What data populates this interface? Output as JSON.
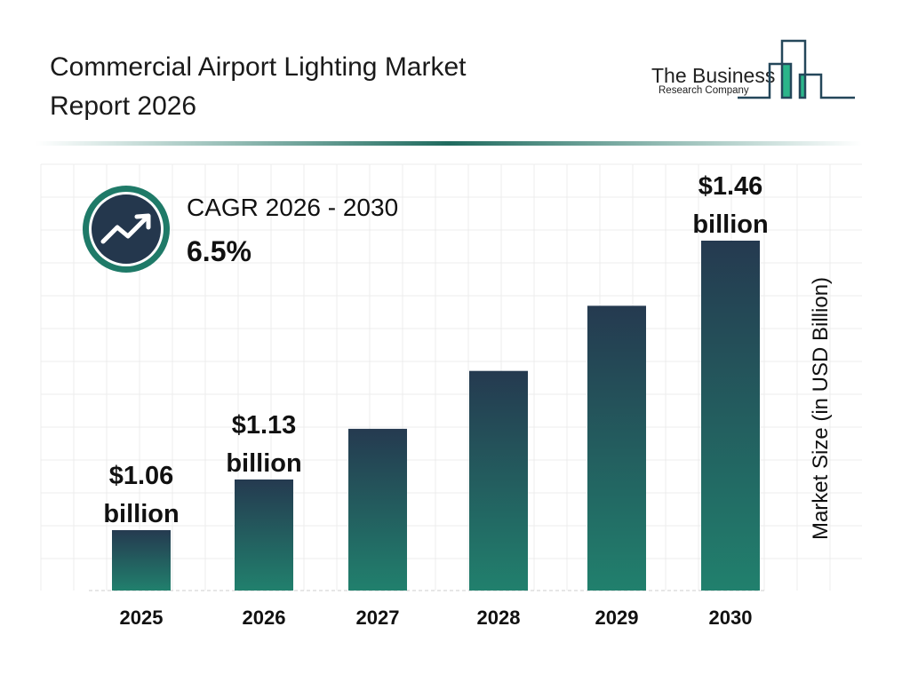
{
  "header": {
    "title_line1": "Commercial Airport Lighting Market",
    "title_line2": "Report 2026"
  },
  "logo": {
    "line1": "The Business",
    "line2": "Research Company"
  },
  "cagr": {
    "label": "CAGR 2026 - 2030",
    "value": "6.5%",
    "icon": "trending-up-icon"
  },
  "colors": {
    "bar_top": "#253a50",
    "bar_bottom": "#21806d",
    "accent": "#1f7a68",
    "icon_bg": "#24374d"
  },
  "chart_data": {
    "type": "bar",
    "categories": [
      "2025",
      "2026",
      "2027",
      "2028",
      "2029",
      "2030"
    ],
    "values": [
      1.06,
      1.13,
      1.2,
      1.28,
      1.37,
      1.46
    ],
    "data_labels": [
      "$1.06 billion",
      "$1.13 billion",
      "",
      "",
      "",
      "$1.46 billion"
    ],
    "ylabel": "Market Size (in USD Billion)",
    "grid": true
  }
}
